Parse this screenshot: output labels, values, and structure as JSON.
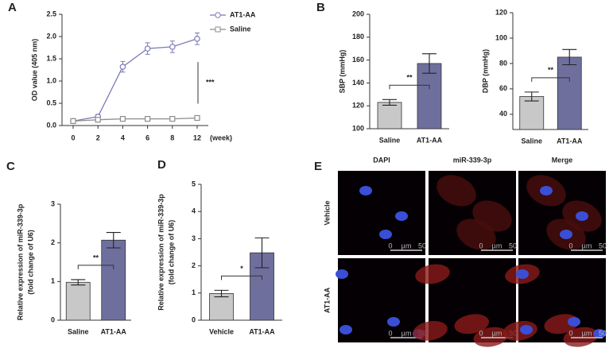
{
  "chart_data": [
    {
      "type": "line",
      "panel": "A",
      "ylabel": [
        "OD value (405 nm)"
      ],
      "xlabel": "(week)",
      "categories": [
        "0",
        "2",
        "4",
        "6",
        "8",
        "12"
      ],
      "ylim": [
        0,
        2.5
      ],
      "yticks": [
        {
          "value": 0,
          "label": "0.0"
        },
        {
          "value": 0.5,
          "label": "0.5"
        },
        {
          "value": 1,
          "label": "1.0"
        },
        {
          "value": 1.5,
          "label": "1.5"
        },
        {
          "value": 2,
          "label": "2.0"
        },
        {
          "value": 2.5,
          "label": "2.5"
        }
      ],
      "series": [
        {
          "name": "AT1-AA",
          "color": "#7b7bb5",
          "marker": "circle",
          "values": [
            0.1,
            0.2,
            1.32,
            1.73,
            1.77,
            1.95
          ],
          "errors": [
            0.03,
            0.05,
            0.12,
            0.13,
            0.13,
            0.13
          ]
        },
        {
          "name": "Saline",
          "color": "#8c8c8c",
          "marker": "square",
          "values": [
            0.1,
            0.13,
            0.15,
            0.15,
            0.15,
            0.17
          ],
          "errors": [
            0.02,
            0.02,
            0.02,
            0.02,
            0.02,
            0.02
          ]
        }
      ],
      "annotation": "***"
    },
    {
      "type": "bar",
      "panel": "B",
      "ylabel": [
        "SBP (mmHg)"
      ],
      "categories": [
        "Saline",
        "AT1-AA"
      ],
      "values": [
        123,
        157
      ],
      "errors": [
        2.5,
        8.5
      ],
      "colors": [
        "#c8c8c8",
        "#6f6f9e"
      ],
      "ylim": [
        100,
        200
      ],
      "yticks": [
        100,
        120,
        140,
        160,
        180,
        200
      ],
      "annotation": "**"
    },
    {
      "type": "bar",
      "ylabel": [
        "DBP (mmHg)"
      ],
      "categories": [
        "Saline",
        "AT1-AA"
      ],
      "values": [
        54,
        85
      ],
      "errors": [
        3.5,
        6
      ],
      "colors": [
        "#c8c8c8",
        "#6f6f9e"
      ],
      "ylim": [
        28,
        120
      ],
      "yticks": [
        40,
        60,
        80,
        100,
        120
      ],
      "annotation": "**"
    },
    {
      "type": "bar",
      "panel": "C",
      "ylabel": [
        "Relative expression of miR-339-3p",
        "(fold change of U6)"
      ],
      "categories": [
        "Saline",
        "AT1-AA"
      ],
      "values": [
        0.98,
        2.07
      ],
      "errors": [
        0.07,
        0.2
      ],
      "colors": [
        "#c8c8c8",
        "#6f6f9e"
      ],
      "ylim": [
        0,
        3
      ],
      "yticks": [
        0,
        1,
        2,
        3
      ],
      "annotation": "**"
    },
    {
      "type": "bar",
      "panel": "D",
      "ylabel": [
        "Relative expression of miR-339-3p",
        "(fold change of U6)"
      ],
      "categories": [
        "Vehicle",
        "AT1-AA"
      ],
      "values": [
        0.98,
        2.48
      ],
      "errors": [
        0.12,
        0.55
      ],
      "colors": [
        "#c8c8c8",
        "#6f6f9e"
      ],
      "ylim": [
        0,
        5
      ],
      "yticks": [
        0,
        1,
        2,
        3,
        4,
        5
      ],
      "annotation": "*"
    }
  ],
  "image_panel": {
    "label": "E",
    "columns": [
      "DAPI",
      "miR-339-3p",
      "Merge"
    ],
    "rows": [
      "Vehicle",
      "AT1-AA"
    ],
    "scale_bar": [
      "0",
      "µm",
      "50"
    ]
  }
}
